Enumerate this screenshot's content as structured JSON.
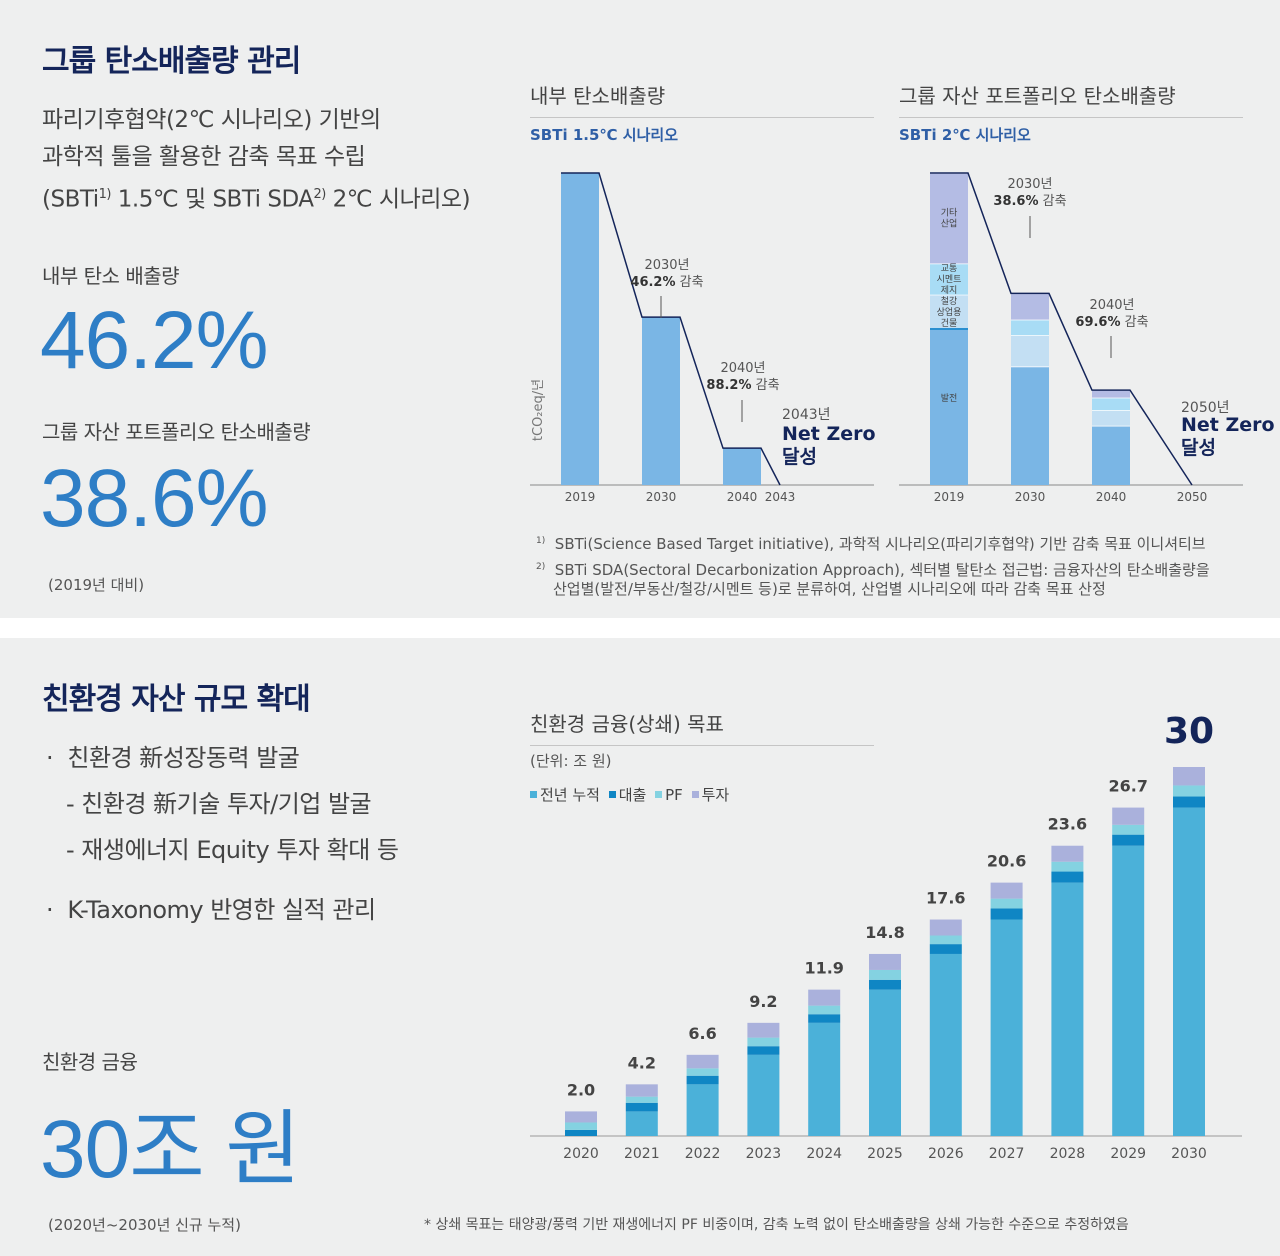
{
  "top": {
    "title": "그룹 탄소배출량 관리",
    "subtitle_lines": [
      "파리기후협약(2℃ 시나리오) 기반의",
      "과학적 툴을 활용한 감축 목표 수립"
    ],
    "subtitle_line3_a": "(SBTi",
    "subtitle_line3_sup1": "1)",
    "subtitle_line3_b": " 1.5℃ 및 SBTi SDA",
    "subtitle_line3_sup2": "2)",
    "subtitle_line3_c": " 2℃ 시나리오)",
    "internal_label": "내부 탄소 배출량",
    "internal_value": "46.2%",
    "portfolio_label": "그룹 자산 포트폴리오 탄소배출량",
    "portfolio_value": "38.6%",
    "baseline_note": "(2019년 대비)",
    "footnote1_num": "1)",
    "footnote1": "SBTi(Science Based Target initiative), 과학적 시나리오(파리기후협약) 기반 감축 목표 이니셔티브",
    "footnote2_num": "2)",
    "footnote2_line1": "SBTi SDA(Sectoral Decarbonization Approach), 섹터별 탈탄소 접근법: 금융자산의 탄소배출량을",
    "footnote2_line2": "산업별(발전/부동산/철강/시멘트 등)로 분류하여, 산업별 시나리오에 따라 감축 목표 산정"
  },
  "chart1": {
    "title": "내부 탄소배출량",
    "scenario": "SBTi 1.5℃ 시나리오",
    "ylabel": "tCO₂eq/년",
    "ann2030_year": "2030년",
    "ann2030_pct": "46.2%",
    "ann2030_word": "감축",
    "ann2040_year": "2040년",
    "ann2040_pct": "88.2%",
    "ann2040_word": "감축",
    "nz_year": "2043년",
    "nz_line1": "Net Zero",
    "nz_line2": "달성"
  },
  "chart2": {
    "title": "그룹 자산 포트폴리오 탄소배출량",
    "scenario": "SBTi 2℃ 시나리오",
    "ann2030_year": "2030년",
    "ann2030_pct": "38.6%",
    "ann2030_word": "감축",
    "ann2040_year": "2040년",
    "ann2040_pct": "69.6%",
    "ann2040_word": "감축",
    "nz_year": "2050년",
    "nz_line1": "Net Zero",
    "nz_line2": "달성",
    "seg_etc": [
      "기타",
      "산업"
    ],
    "seg_mid": [
      "교통",
      "시멘트",
      "제지"
    ],
    "seg_low": [
      "철강",
      "상업용",
      "건물"
    ],
    "seg_power": "발전"
  },
  "bottom": {
    "title": "친환경 자산 규모 확대",
    "bullet1": "친환경 新성장동력 발굴",
    "bullet1_sub1": "- 친환경 新기술 투자/기업 발굴",
    "bullet1_sub2": "- 재생에너지 Equity 투자 확대 등",
    "bullet2": "K-Taxonomy 반영한 실적 관리",
    "bullet_mark": "·",
    "fin_label": "친환경 금융",
    "fin_value": "30조 원",
    "fin_note": "(2020년~2030년 신규 누적)",
    "chart_title": "친환경 금융(상쇄) 목표",
    "unit": "(단위: 조 원)",
    "legend": [
      "전년 누적",
      "대출",
      "PF",
      "투자"
    ],
    "footnote": "*  상쇄 목표는 태양광/풍력 기반 재생에너지 PF 비중이며, 감축 노력 없이 탄소배출량을 상쇄 가능한 수준으로 추정하였음"
  },
  "colors": {
    "navy": "#14255a",
    "blue_big": "#2e7ec6",
    "bar_light": "#7ab6e5",
    "prev_cum": "#4bb1d9",
    "loan": "#0f86c4",
    "pf": "#84d2e1",
    "invest": "#aab1dc",
    "etc": "#b4bce4",
    "mid": "#a8dcf5",
    "low": "#c3dff3",
    "power": "#7ab6e5"
  },
  "chart_data": [
    {
      "type": "bar",
      "title": "내부 탄소배출량",
      "categories": [
        "2019",
        "2030",
        "2040",
        "2043"
      ],
      "values": [
        100,
        53.8,
        11.8,
        0
      ],
      "ylabel": "tCO₂eq/년",
      "ylim": [
        0,
        100
      ]
    },
    {
      "type": "bar",
      "title": "그룹 자산 포트폴리오 탄소배출량",
      "categories": [
        "2019",
        "2030",
        "2040",
        "2050"
      ],
      "series": [
        {
          "name": "발전",
          "values": [
            50,
            38,
            19,
            0
          ]
        },
        {
          "name": "철강/상업용 건물",
          "values": [
            11,
            10,
            5,
            0
          ]
        },
        {
          "name": "교통/시멘트/제지",
          "values": [
            10,
            5,
            4,
            0
          ]
        },
        {
          "name": "기타 산업",
          "values": [
            29,
            8.4,
            2.4,
            0
          ]
        }
      ],
      "ylim": [
        0,
        100
      ]
    },
    {
      "type": "bar",
      "title": "친환경 금융(상쇄) 목표",
      "categories": [
        "2020",
        "2021",
        "2022",
        "2023",
        "2024",
        "2025",
        "2026",
        "2027",
        "2028",
        "2029",
        "2030"
      ],
      "totals": [
        2.0,
        4.2,
        6.6,
        9.2,
        11.9,
        14.8,
        17.6,
        20.6,
        23.6,
        26.7,
        30
      ],
      "total_labels": [
        "2.0",
        "4.2",
        "6.6",
        "9.2",
        "11.9",
        "14.8",
        "17.6",
        "20.6",
        "23.6",
        "26.7",
        "30"
      ],
      "series": [
        {
          "name": "전년 누적",
          "values": [
            0,
            2.0,
            4.2,
            6.6,
            9.2,
            11.9,
            14.8,
            17.6,
            20.6,
            23.6,
            26.7
          ]
        },
        {
          "name": "대출",
          "values": [
            0.5,
            0.7,
            0.7,
            0.7,
            0.7,
            0.8,
            0.8,
            0.9,
            0.9,
            0.9,
            0.9
          ]
        },
        {
          "name": "PF",
          "values": [
            0.6,
            0.5,
            0.6,
            0.7,
            0.7,
            0.8,
            0.7,
            0.8,
            0.8,
            0.8,
            0.9
          ]
        },
        {
          "name": "투자",
          "values": [
            0.9,
            1.0,
            1.1,
            1.2,
            1.3,
            1.3,
            1.3,
            1.3,
            1.3,
            1.4,
            1.5
          ]
        }
      ],
      "unit": "조 원"
    }
  ]
}
